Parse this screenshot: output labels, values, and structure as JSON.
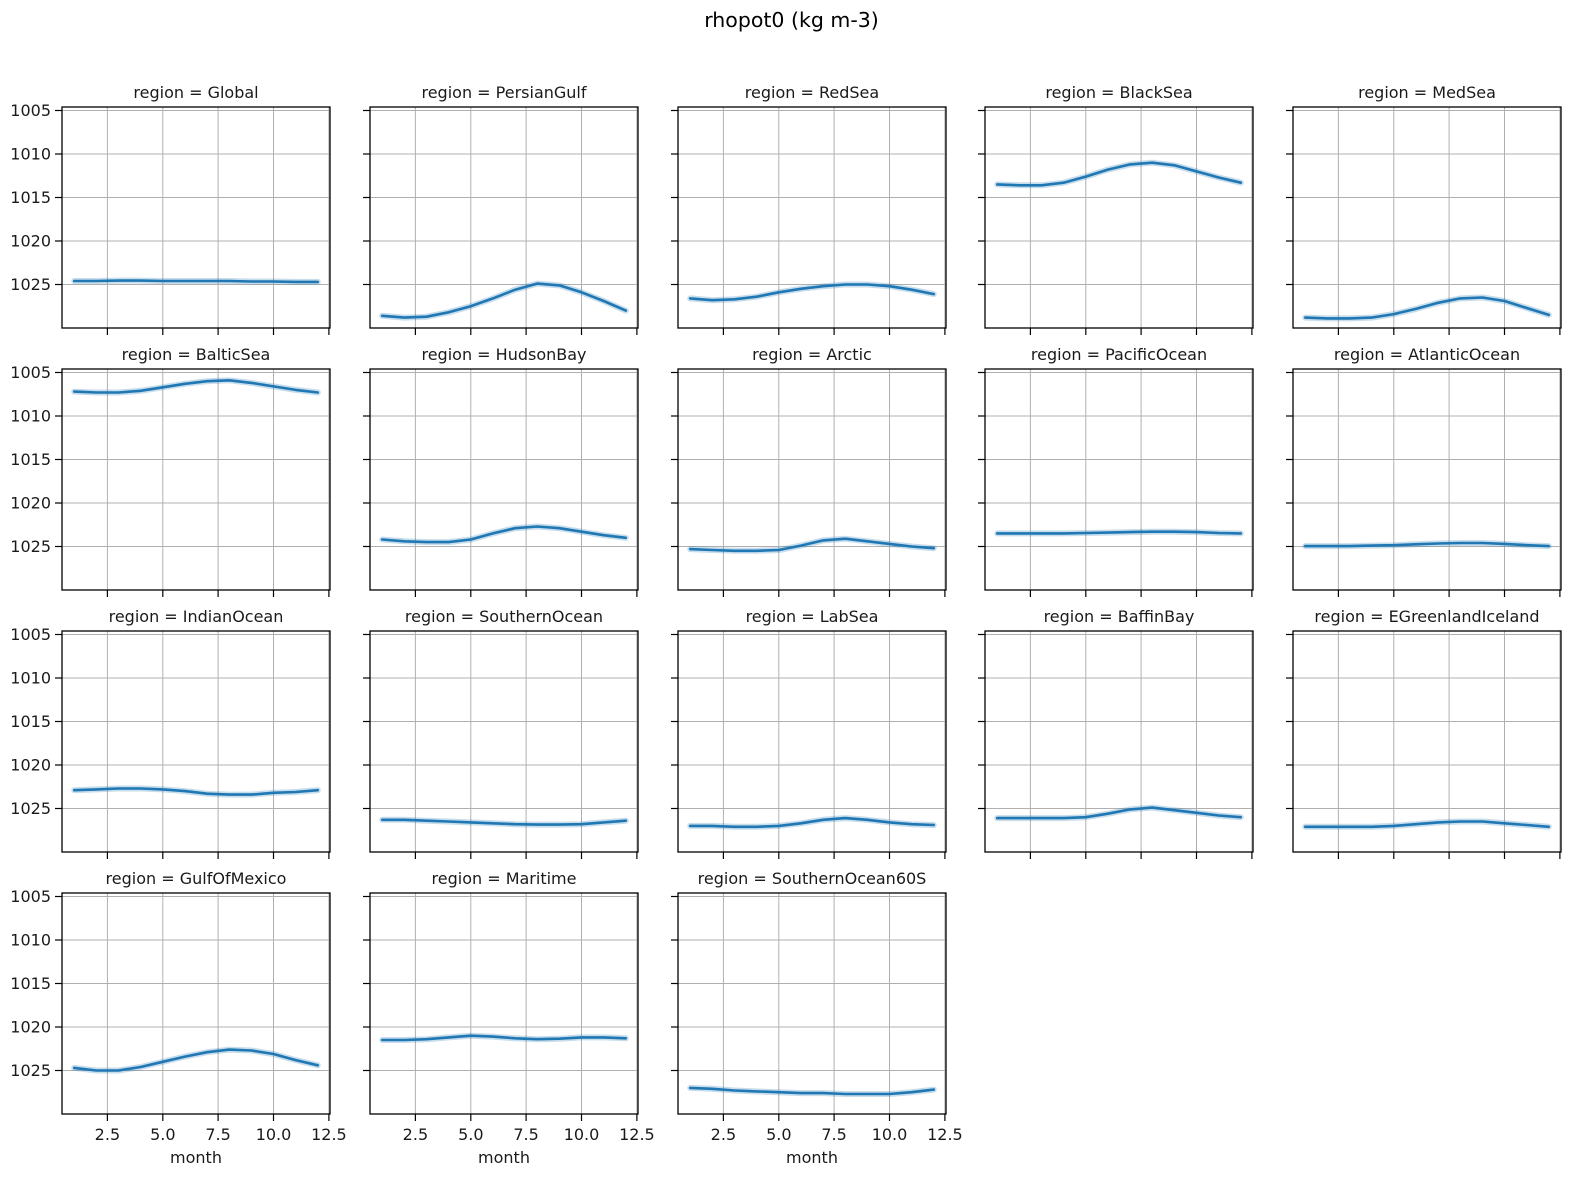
{
  "suptitle": "rhopot0 (kg m-3)",
  "chart_data": {
    "type": "line",
    "title": "rhopot0 (kg m-3)",
    "facet_by": "region",
    "xlabel": "month",
    "x": [
      1,
      2,
      3,
      4,
      5,
      6,
      7,
      8,
      9,
      10,
      11,
      12
    ],
    "x_tick_values": [
      2.5,
      5.0,
      7.5,
      10.0,
      12.5
    ],
    "x_tick_labels": [
      "2.5",
      "5.0",
      "7.5",
      "10.0",
      "12.5"
    ],
    "y_ticks": [
      1005,
      1010,
      1015,
      1020,
      1025
    ],
    "xlim": [
      0.45,
      12.55
    ],
    "ylim": [
      1004.6,
      1030.0
    ],
    "y_axis_inverted": true,
    "grid": true,
    "legend": "none",
    "line_color": "#1f77b4",
    "band_color": "#1f77b4",
    "band_opacity": 0.25,
    "series": [
      {
        "region": "Global",
        "title": "region = Global",
        "values": [
          1024.6,
          1024.6,
          1024.55,
          1024.55,
          1024.6,
          1024.6,
          1024.6,
          1024.6,
          1024.65,
          1024.65,
          1024.7,
          1024.7
        ]
      },
      {
        "region": "PersianGulf",
        "title": "region = PersianGulf",
        "values": [
          1028.6,
          1028.8,
          1028.7,
          1028.2,
          1027.5,
          1026.6,
          1025.6,
          1024.9,
          1025.1,
          1025.9,
          1026.9,
          1028.0
        ]
      },
      {
        "region": "RedSea",
        "title": "region = RedSea",
        "values": [
          1026.6,
          1026.8,
          1026.7,
          1026.4,
          1025.9,
          1025.5,
          1025.2,
          1025.0,
          1025.0,
          1025.2,
          1025.6,
          1026.1
        ]
      },
      {
        "region": "BlackSea",
        "title": "region = BlackSea",
        "values": [
          1013.5,
          1013.6,
          1013.6,
          1013.3,
          1012.6,
          1011.8,
          1011.2,
          1011.0,
          1011.3,
          1012.0,
          1012.7,
          1013.3
        ]
      },
      {
        "region": "MedSea",
        "title": "region = MedSea",
        "values": [
          1028.8,
          1028.9,
          1028.9,
          1028.8,
          1028.4,
          1027.8,
          1027.1,
          1026.6,
          1026.5,
          1026.9,
          1027.7,
          1028.5
        ]
      },
      {
        "region": "BalticSea",
        "title": "region = BalticSea",
        "values": [
          1007.2,
          1007.3,
          1007.3,
          1007.1,
          1006.7,
          1006.3,
          1006.0,
          1005.9,
          1006.2,
          1006.6,
          1007.0,
          1007.3
        ]
      },
      {
        "region": "HudsonBay",
        "title": "region = HudsonBay",
        "values": [
          1024.2,
          1024.4,
          1024.5,
          1024.5,
          1024.2,
          1023.5,
          1022.9,
          1022.7,
          1022.9,
          1023.3,
          1023.7,
          1024.0
        ]
      },
      {
        "region": "Arctic",
        "title": "region = Arctic",
        "values": [
          1025.3,
          1025.4,
          1025.5,
          1025.5,
          1025.4,
          1024.9,
          1024.3,
          1024.1,
          1024.4,
          1024.7,
          1025.0,
          1025.2
        ]
      },
      {
        "region": "PacificOcean",
        "title": "region = PacificOcean",
        "values": [
          1023.5,
          1023.5,
          1023.5,
          1023.5,
          1023.45,
          1023.4,
          1023.35,
          1023.3,
          1023.3,
          1023.35,
          1023.45,
          1023.5
        ]
      },
      {
        "region": "AtlanticOcean",
        "title": "region = AtlanticOcean",
        "values": [
          1024.95,
          1024.95,
          1024.95,
          1024.9,
          1024.85,
          1024.75,
          1024.65,
          1024.6,
          1024.6,
          1024.7,
          1024.85,
          1024.95
        ]
      },
      {
        "region": "IndianOcean",
        "title": "region = IndianOcean",
        "values": [
          1022.9,
          1022.8,
          1022.7,
          1022.7,
          1022.8,
          1023.0,
          1023.3,
          1023.4,
          1023.4,
          1023.2,
          1023.1,
          1022.9
        ]
      },
      {
        "region": "SouthernOcean",
        "title": "region = SouthernOcean",
        "values": [
          1026.3,
          1026.3,
          1026.4,
          1026.5,
          1026.6,
          1026.7,
          1026.8,
          1026.85,
          1026.85,
          1026.8,
          1026.6,
          1026.4
        ]
      },
      {
        "region": "LabSea",
        "title": "region = LabSea",
        "values": [
          1027.0,
          1027.0,
          1027.1,
          1027.1,
          1027.0,
          1026.7,
          1026.3,
          1026.1,
          1026.3,
          1026.6,
          1026.8,
          1026.9
        ]
      },
      {
        "region": "BaffinBay",
        "title": "region = BaffinBay",
        "values": [
          1026.1,
          1026.1,
          1026.1,
          1026.1,
          1026.0,
          1025.6,
          1025.1,
          1024.9,
          1025.2,
          1025.5,
          1025.8,
          1026.0
        ]
      },
      {
        "region": "EGreenlandIceland",
        "title": "region = EGreenlandIceland",
        "values": [
          1027.1,
          1027.1,
          1027.1,
          1027.1,
          1027.0,
          1026.8,
          1026.6,
          1026.5,
          1026.5,
          1026.7,
          1026.9,
          1027.1
        ]
      },
      {
        "region": "GulfOfMexico",
        "title": "region = GulfOfMexico",
        "values": [
          1024.7,
          1025.0,
          1025.0,
          1024.6,
          1024.0,
          1023.4,
          1022.9,
          1022.6,
          1022.7,
          1023.1,
          1023.8,
          1024.4
        ]
      },
      {
        "region": "Maritime",
        "title": "region = Maritime",
        "values": [
          1021.5,
          1021.5,
          1021.4,
          1021.2,
          1021.0,
          1021.1,
          1021.3,
          1021.4,
          1021.35,
          1021.2,
          1021.2,
          1021.3
        ]
      },
      {
        "region": "SouthernOcean60S",
        "title": "region = SouthernOcean60S",
        "values": [
          1027.0,
          1027.1,
          1027.3,
          1027.4,
          1027.5,
          1027.6,
          1027.6,
          1027.7,
          1027.7,
          1027.7,
          1027.5,
          1027.2
        ]
      }
    ]
  }
}
